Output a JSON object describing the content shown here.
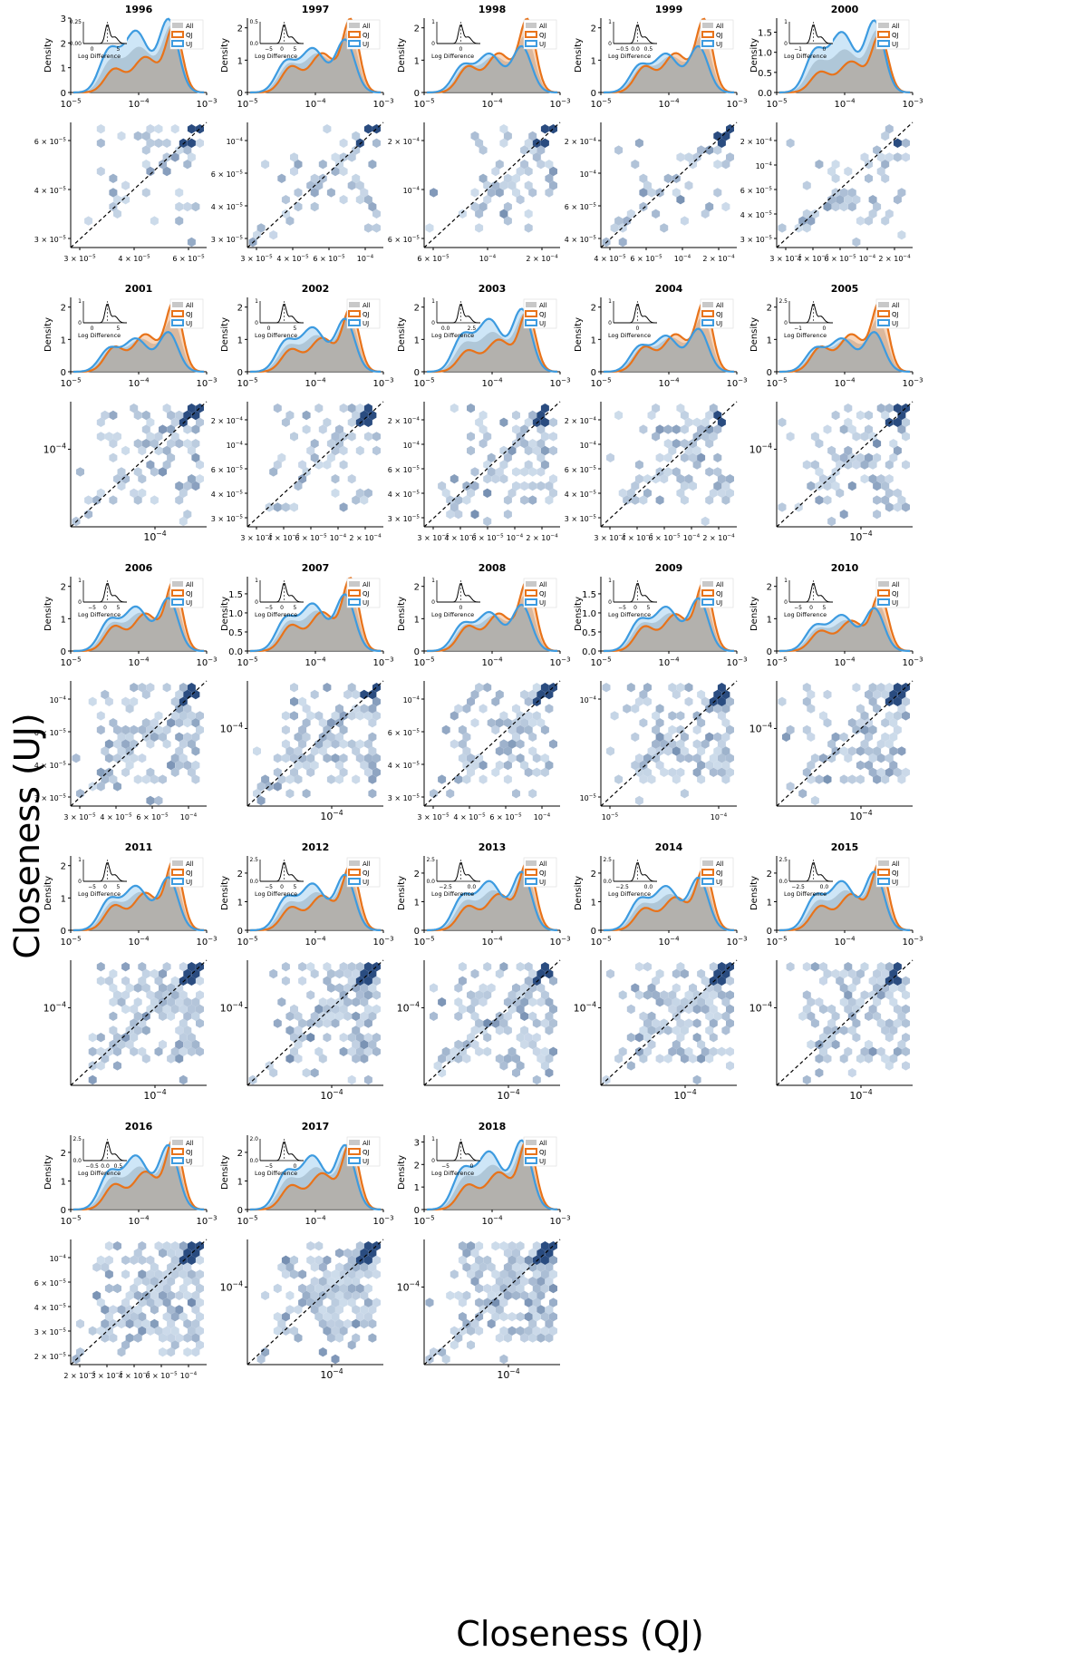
{
  "figure": {
    "ylabel": "Closeness (UJ)",
    "xlabel": "Closeness (QJ)"
  },
  "colors": {
    "all": "#c8c8c8",
    "qj": "#e8731a",
    "uj": "#3d9be0",
    "hex_dark": "#08306b",
    "hex_light": "#deebf7",
    "diagonal": "#000000"
  },
  "chart_data": {
    "type": "kde_and_hexbin_panels",
    "years": [
      "1996",
      "1997",
      "1998",
      "1999",
      "2000",
      "2001",
      "2002",
      "2003",
      "2004",
      "2005",
      "2006",
      "2007",
      "2008",
      "2009",
      "2010",
      "2011",
      "2012",
      "2013",
      "2014",
      "2015",
      "2016",
      "2017",
      "2018"
    ],
    "density_panel": {
      "ylabel": "Density",
      "xscale": "log",
      "xlim": [
        1e-05,
        0.001
      ],
      "xticks": [
        "10^-5",
        "10^-4",
        "10^-3"
      ],
      "legend": [
        "All",
        "QJ",
        "UJ"
      ],
      "legend_placement": "top-right",
      "inset_xlabel": "Log Difference"
    },
    "hexbin_panel": {
      "xscale": "log",
      "yscale": "log",
      "diagonal": "y = x (dashed)"
    },
    "panels": [
      {
        "year": "1996",
        "yticks": [
          "0",
          "1",
          "2",
          "3"
        ],
        "ymax": 3,
        "qj_peak": 2.6,
        "uj_peak": 2.9,
        "inset_yticks": [
          "0.00",
          "0.25"
        ],
        "inset_xticks": [
          "0",
          "5"
        ],
        "hex_xticks": [
          "3 × 10^-5",
          "4 × 10^-5",
          "6 × 10^-5"
        ],
        "hex_yticks": [
          "3 × 10^-5",
          "4 × 10^-5",
          "6 × 10^-5"
        ]
      },
      {
        "year": "1997",
        "yticks": [
          "0",
          "1",
          "2"
        ],
        "ymax": 2.3,
        "qj_peak": 2.2,
        "uj_peak": 1.6,
        "inset_yticks": [
          "0.0",
          "0.5"
        ],
        "inset_xticks": [
          "-5",
          "0",
          "5"
        ],
        "hex_xticks": [
          "3 × 10^-5",
          "4 × 10^-5",
          "6 × 10^-5",
          "10^-4"
        ],
        "hex_yticks": [
          "3 × 10^-5",
          "4 × 10^-5",
          "6 × 10^-5",
          "10^-4"
        ]
      },
      {
        "year": "1998",
        "yticks": [
          "0",
          "1",
          "2"
        ],
        "ymax": 2.3,
        "qj_peak": 2.2,
        "uj_peak": 1.4,
        "inset_yticks": [
          "0",
          "1"
        ],
        "inset_xticks": [
          "0"
        ],
        "hex_xticks": [
          "6 × 10^-5",
          "10^-4",
          "2 × 10^-4"
        ],
        "hex_yticks": [
          "6 × 10^-5",
          "10^-4",
          "2 × 10^-4"
        ]
      },
      {
        "year": "1999",
        "yticks": [
          "0",
          "1",
          "2"
        ],
        "ymax": 2.3,
        "qj_peak": 2.2,
        "uj_peak": 1.4,
        "inset_yticks": [
          "0",
          "1"
        ],
        "inset_xticks": [
          "-0.5",
          "0.0",
          "0.5"
        ],
        "hex_xticks": [
          "4 × 10^-5",
          "6 × 10^-5",
          "10^-4",
          "2 × 10^-4"
        ],
        "hex_yticks": [
          "4 × 10^-5",
          "6 × 10^-5",
          "10^-4",
          "2 × 10^-4"
        ]
      },
      {
        "year": "2000",
        "yticks": [
          "0.0",
          "0.5",
          "1.0",
          "1.5"
        ],
        "ymax": 1.85,
        "qj_peak": 1.4,
        "uj_peak": 1.75,
        "inset_yticks": [
          "0",
          "1"
        ],
        "inset_xticks": [
          "-1",
          "0"
        ],
        "hex_xticks": [
          "3 × 10^-5",
          "4 × 10^-5",
          "6 × 10^-5",
          "10^-4",
          "2 × 10^-4"
        ],
        "hex_yticks": [
          "3 × 10^-5",
          "4 × 10^-5",
          "6 × 10^-5",
          "10^-4",
          "2 × 10^-4"
        ]
      },
      {
        "year": "2001",
        "yticks": [
          "0",
          "1",
          "2"
        ],
        "ymax": 2.3,
        "qj_peak": 2.1,
        "uj_peak": 1.2,
        "inset_yticks": [
          "0",
          "1"
        ],
        "inset_xticks": [
          "0",
          "5"
        ],
        "hex_xticks": [
          "10^-4"
        ],
        "hex_yticks": [
          "10^-4"
        ]
      },
      {
        "year": "2002",
        "yticks": [
          "0",
          "1",
          "2"
        ],
        "ymax": 2.3,
        "qj_peak": 1.9,
        "uj_peak": 1.6,
        "inset_yticks": [
          "0",
          "1"
        ],
        "inset_xticks": [
          "0",
          "5"
        ],
        "hex_xticks": [
          "3 × 10^-5",
          "4 × 10^-5",
          "6 × 10^-5",
          "10^-4",
          "2 × 10^-4"
        ],
        "hex_yticks": [
          "3 × 10^-5",
          "4 × 10^-5",
          "6 × 10^-5",
          "10^-4",
          "2 × 10^-4"
        ]
      },
      {
        "year": "2003",
        "yticks": [
          "0",
          "1",
          "2"
        ],
        "ymax": 2.3,
        "qj_peak": 1.8,
        "uj_peak": 1.9,
        "inset_yticks": [
          "0",
          "1"
        ],
        "inset_xticks": [
          "0.0",
          "2.5"
        ],
        "hex_xticks": [
          "3 × 10^-5",
          "4 × 10^-5",
          "6 × 10^-5",
          "10^-4",
          "2 × 10^-4"
        ],
        "hex_yticks": [
          "3 × 10^-5",
          "4 × 10^-5",
          "6 × 10^-5",
          "10^-4",
          "2 × 10^-4"
        ]
      },
      {
        "year": "2004",
        "yticks": [
          "0",
          "1",
          "2"
        ],
        "ymax": 2.3,
        "qj_peak": 2.1,
        "uj_peak": 1.3,
        "inset_yticks": [
          "0",
          "1"
        ],
        "inset_xticks": [
          "0"
        ],
        "hex_xticks": [
          "3 × 10^-5",
          "4 × 10^-5",
          "6 × 10^-5",
          "10^-4",
          "2 × 10^-4"
        ],
        "hex_yticks": [
          "3 × 10^-5",
          "4 × 10^-5",
          "6 × 10^-5",
          "10^-4",
          "2 × 10^-4"
        ]
      },
      {
        "year": "2005",
        "yticks": [
          "0",
          "1",
          "2"
        ],
        "ymax": 2.3,
        "qj_peak": 2.1,
        "uj_peak": 1.2,
        "inset_yticks": [
          "0",
          "2.5"
        ],
        "inset_xticks": [
          "-1",
          "0"
        ],
        "hex_xticks": [
          "10^-4"
        ],
        "hex_yticks": [
          "10^-4"
        ]
      },
      {
        "year": "2006",
        "yticks": [
          "0",
          "1",
          "2"
        ],
        "ymax": 2.3,
        "qj_peak": 2.1,
        "uj_peak": 1.6,
        "inset_yticks": [
          "0",
          "1"
        ],
        "inset_xticks": [
          "-5",
          "0",
          "5"
        ],
        "hex_xticks": [
          "3 × 10^-5",
          "4 × 10^-5",
          "6 × 10^-5",
          "10^-4"
        ],
        "hex_yticks": [
          "3 × 10^-5",
          "4 × 10^-5",
          "6 × 10^-5",
          "10^-4"
        ]
      },
      {
        "year": "2007",
        "yticks": [
          "0.0",
          "0.5",
          "1.0",
          "1.5"
        ],
        "ymax": 1.95,
        "qj_peak": 1.85,
        "uj_peak": 1.45,
        "inset_yticks": [
          "0",
          "1"
        ],
        "inset_xticks": [
          "-5",
          "0",
          "5"
        ],
        "hex_xticks": [
          "10^-4"
        ],
        "hex_yticks": [
          "10^-4"
        ]
      },
      {
        "year": "2008",
        "yticks": [
          "0",
          "1",
          "2"
        ],
        "ymax": 2.3,
        "qj_peak": 2.1,
        "uj_peak": 1.4,
        "inset_yticks": [
          "0",
          "1"
        ],
        "inset_xticks": [
          "0"
        ],
        "hex_xticks": [
          "3 × 10^-5",
          "4 × 10^-5",
          "6 × 10^-5",
          "10^-4"
        ],
        "hex_yticks": [
          "3 × 10^-5",
          "4 × 10^-5",
          "6 × 10^-5",
          "10^-4"
        ]
      },
      {
        "year": "2009",
        "yticks": [
          "0.0",
          "0.5",
          "1.0",
          "1.5"
        ],
        "ymax": 1.95,
        "qj_peak": 1.75,
        "uj_peak": 1.35,
        "inset_yticks": [
          "0",
          "1"
        ],
        "inset_xticks": [
          "-5",
          "0",
          "5"
        ],
        "hex_xticks": [
          "10^-5",
          "10^-4"
        ],
        "hex_yticks": [
          "10^-5",
          "10^-4"
        ]
      },
      {
        "year": "2010",
        "yticks": [
          "0",
          "1",
          "2"
        ],
        "ymax": 2.3,
        "qj_peak": 1.7,
        "uj_peak": 1.3,
        "inset_yticks": [
          "0",
          "1"
        ],
        "inset_xticks": [
          "-5",
          "0",
          "5"
        ],
        "hex_xticks": [
          "10^-4"
        ],
        "hex_yticks": [
          "10^-4"
        ]
      },
      {
        "year": "2011",
        "yticks": [
          "0",
          "1",
          "2"
        ],
        "ymax": 2.3,
        "qj_peak": 2.1,
        "uj_peak": 1.6,
        "inset_yticks": [
          "0",
          "1"
        ],
        "inset_xticks": [
          "-5",
          "0",
          "5"
        ],
        "hex_xticks": [
          "10^-4"
        ],
        "hex_yticks": [
          "10^-4"
        ]
      },
      {
        "year": "2012",
        "yticks": [
          "0",
          "1",
          "2"
        ],
        "ymax": 2.6,
        "qj_peak": 2.2,
        "uj_peak": 1.9,
        "inset_yticks": [
          "0.0",
          "2.5"
        ],
        "inset_xticks": [
          "-5",
          "0",
          "5"
        ],
        "hex_xticks": [
          "10^-4"
        ],
        "hex_yticks": [
          "10^-4"
        ]
      },
      {
        "year": "2013",
        "yticks": [
          "0",
          "1",
          "2"
        ],
        "ymax": 2.6,
        "qj_peak": 2.3,
        "uj_peak": 2.0,
        "inset_yticks": [
          "0.0",
          "2.5"
        ],
        "inset_xticks": [
          "-2.5",
          "0.0"
        ],
        "hex_xticks": [
          "10^-4"
        ],
        "hex_yticks": [
          "10^-4"
        ]
      },
      {
        "year": "2014",
        "yticks": [
          "0",
          "1",
          "2"
        ],
        "ymax": 2.6,
        "qj_peak": 2.1,
        "uj_peak": 1.8,
        "inset_yticks": [
          "0.0",
          "2.5"
        ],
        "inset_xticks": [
          "-2.5",
          "0.0"
        ],
        "hex_xticks": [
          "10^-4"
        ],
        "hex_yticks": [
          "10^-4"
        ]
      },
      {
        "year": "2015",
        "yticks": [
          "0",
          "1",
          "2"
        ],
        "ymax": 2.6,
        "qj_peak": 2.3,
        "uj_peak": 2.0,
        "inset_yticks": [
          "0.0",
          "2.5"
        ],
        "inset_xticks": [
          "-2.5",
          "0.0"
        ],
        "hex_xticks": [
          "10^-4"
        ],
        "hex_yticks": [
          "10^-4"
        ]
      },
      {
        "year": "2016",
        "yticks": [
          "0",
          "1",
          "2"
        ],
        "ymax": 2.6,
        "qj_peak": 2.4,
        "uj_peak": 2.2,
        "inset_yticks": [
          "0.0",
          "2.5"
        ],
        "inset_xticks": [
          "-0.5",
          "0.0",
          "0.5"
        ],
        "hex_xticks": [
          "2 × 10^-5",
          "3 × 10^-5",
          "4 × 10^-5",
          "6 × 10^-5",
          "10^-4"
        ],
        "hex_yticks": [
          "2 × 10^-5",
          "3 × 10^-5",
          "4 × 10^-5",
          "6 × 10^-5",
          "10^-4"
        ]
      },
      {
        "year": "2017",
        "yticks": [
          "0",
          "1",
          "2"
        ],
        "ymax": 2.6,
        "qj_peak": 2.3,
        "uj_peak": 2.2,
        "inset_yticks": [
          "0.0",
          "2.0"
        ],
        "inset_xticks": [
          "-5",
          "0"
        ],
        "hex_xticks": [
          "10^-4"
        ],
        "hex_yticks": [
          "10^-4"
        ]
      },
      {
        "year": "2018",
        "yticks": [
          "0",
          "1",
          "2",
          "3"
        ],
        "ymax": 3.3,
        "qj_peak": 3.0,
        "uj_peak": 3.0,
        "inset_yticks": [
          "0",
          "1"
        ],
        "inset_xticks": [
          "-5",
          "0"
        ],
        "hex_xticks": [
          "10^-4"
        ],
        "hex_yticks": [
          "10^-4"
        ]
      }
    ]
  }
}
